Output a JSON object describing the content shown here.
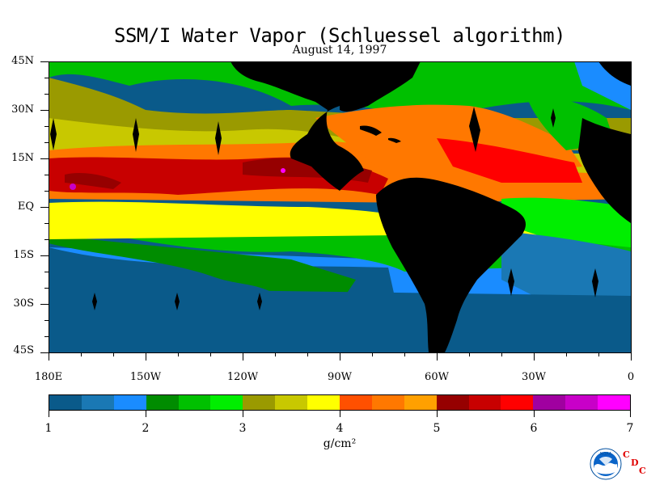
{
  "title": "SSM/I Water Vapor (Schluessel algorithm)",
  "subtitle": "August 14, 1997",
  "lat_labels": [
    "45N",
    "30N",
    "15N",
    "EQ",
    "15S",
    "30S",
    "45S"
  ],
  "lon_labels": [
    "180E",
    "150W",
    "120W",
    "90W",
    "60W",
    "30W",
    "0"
  ],
  "colorbar": {
    "colors": [
      "#0a5a8a",
      "#1a78b4",
      "#1a8cff",
      "#008c00",
      "#00c000",
      "#00ee00",
      "#9a9a00",
      "#c8c800",
      "#ffff00",
      "#ff5000",
      "#ff7800",
      "#ffa000",
      "#960000",
      "#c80000",
      "#ff0000",
      "#a000a0",
      "#c800c8",
      "#ff00ff"
    ],
    "tick_labels": [
      "1",
      "2",
      "3",
      "4",
      "5",
      "6",
      "7"
    ],
    "units": "g/cm²",
    "range": [
      1,
      7
    ]
  },
  "logos": {
    "noaa_text": "NOAA",
    "cdc_letters": [
      "C",
      "D",
      "C"
    ]
  }
}
